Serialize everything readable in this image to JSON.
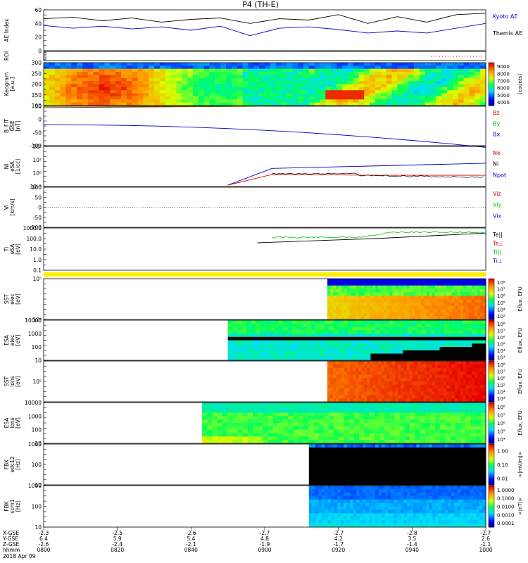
{
  "title": "P4 (TH-E)",
  "date_label": "2018 Apr 09",
  "colors": {
    "black": "#000000",
    "blue": "#0000d0",
    "red": "#d00000",
    "green": "#00c000",
    "yellow": "#ffee00"
  },
  "chart_data": [
    {
      "id": "ae",
      "type": "line",
      "ylabel": "AE Index",
      "ylim": [
        0,
        60
      ],
      "yticks": [
        "0",
        "20",
        "40",
        "60"
      ],
      "legend": [
        {
          "label": "Kyoto AE",
          "color": "#0000d0"
        },
        {
          "label": "Themis AE",
          "color": "#000000"
        }
      ],
      "series": [
        {
          "color": "#000000",
          "x": [
            0,
            4,
            8,
            12,
            16,
            20,
            24,
            28,
            32,
            36,
            40,
            44,
            48,
            52,
            56,
            60
          ],
          "values": [
            47,
            49,
            44,
            48,
            42,
            46,
            48,
            40,
            47,
            45,
            53,
            40,
            50,
            42,
            53,
            55
          ]
        },
        {
          "color": "#0000d0",
          "x": [
            0,
            4,
            8,
            12,
            16,
            20,
            24,
            28,
            32,
            36,
            40,
            44,
            48,
            52,
            56,
            60
          ],
          "values": [
            37,
            33,
            36,
            32,
            35,
            30,
            36,
            22,
            33,
            35,
            31,
            26,
            29,
            26,
            33,
            40
          ]
        }
      ]
    },
    {
      "id": "roi",
      "type": "line",
      "ylabel": "ROI",
      "note": "dotted red segment near end"
    },
    {
      "id": "keogram",
      "type": "heatmap",
      "ylabel": [
        "Keogram",
        "[a.u.]"
      ],
      "ylim": [
        100,
        300
      ],
      "yticks": [
        "100",
        "150",
        "200",
        "250",
        "300"
      ],
      "colorbar": {
        "label": "[counts]",
        "ticks": [
          "4000",
          "5000",
          "6000",
          "7000",
          "8000",
          "9000"
        ]
      }
    },
    {
      "id": "bfield",
      "type": "line",
      "ylabel": [
        "B_FIT",
        "GSE",
        "[nT]"
      ],
      "ylim": [
        -100,
        50
      ],
      "yticks": [
        "-100",
        "-50",
        "0",
        "50"
      ],
      "legend": [
        {
          "label": "Bz",
          "color": "#d00000"
        },
        {
          "label": "By",
          "color": "#00c000"
        },
        {
          "label": "Bx",
          "color": "#0000d0"
        }
      ]
    },
    {
      "id": "density",
      "type": "line",
      "ylabel": [
        "Ni",
        "eSA",
        "[1/cc]"
      ],
      "yticks": [
        "10⁻²",
        "10⁰",
        "10²",
        "10⁴"
      ],
      "legend": [
        {
          "label": "Ne",
          "color": "#d00000"
        },
        {
          "label": "Ni",
          "color": "#000000"
        },
        {
          "label": "Npot",
          "color": "#0000d0"
        }
      ]
    },
    {
      "id": "velocity",
      "type": "line",
      "ylabel": [
        "Vi",
        "[km/s]"
      ],
      "ylim": [
        -100,
        100
      ],
      "yticks": [
        "-100",
        "-50",
        "0",
        "50",
        "100"
      ],
      "legend": [
        {
          "label": "Viz",
          "color": "#d00000"
        },
        {
          "label": "Viy",
          "color": "#00c000"
        },
        {
          "label": "Vix",
          "color": "#0000d0"
        }
      ]
    },
    {
      "id": "temperature",
      "type": "line",
      "ylabel": [
        "Ti",
        "eSA",
        "[eV]"
      ],
      "yticks": [
        "0.1",
        "1.0",
        "10.0",
        "100.0",
        "1000.0"
      ],
      "legend": [
        {
          "label": "Te||",
          "color": "#000000"
        },
        {
          "label": "Te⊥",
          "color": "#d00000"
        },
        {
          "label": "Ti||",
          "color": "#00c000"
        },
        {
          "label": "Ti⊥",
          "color": "#0000d0"
        }
      ]
    },
    {
      "id": "sst_e",
      "type": "heatmap",
      "ylabel": [
        "SST",
        "elec",
        "[eV]"
      ],
      "yticks": [
        "10⁴",
        "10⁵"
      ],
      "colorbar": {
        "title": "Eflux, EFU",
        "ticks": [
          "10³",
          "10⁴",
          "10⁵",
          "10⁶",
          "10⁷",
          "10⁸"
        ]
      }
    },
    {
      "id": "esa_e",
      "type": "heatmap",
      "ylabel": [
        "ESA",
        "elec",
        "[eV]"
      ],
      "yticks": [
        "10",
        "100",
        "1000",
        "10000"
      ],
      "colorbar": {
        "title": "Eflux, EFU",
        "ticks": [
          "10³",
          "10⁴",
          "10⁵",
          "10⁶",
          "10⁷",
          "10⁸"
        ]
      }
    },
    {
      "id": "sst_i",
      "type": "heatmap",
      "ylabel": [
        "SST",
        "ions",
        "[eV]"
      ],
      "yticks": [
        "10⁵"
      ],
      "colorbar": {
        "title": "Eflux, EFU",
        "ticks": [
          "10³",
          "10⁴",
          "10⁵",
          "10⁶",
          "10⁷",
          "10⁸"
        ]
      }
    },
    {
      "id": "esa_i",
      "type": "heatmap",
      "ylabel": [
        "ESA",
        "ions",
        "[eV]"
      ],
      "yticks": [
        "10",
        "100",
        "1000",
        "10000"
      ],
      "colorbar": {
        "title": "Eflux, EFU",
        "ticks": [
          "10⁴",
          "10⁵",
          "10⁶",
          "10⁷",
          "10⁸"
        ]
      }
    },
    {
      "id": "fbk_e",
      "type": "heatmap",
      "ylabel": [
        "FBK",
        "edc12",
        "[Hz]"
      ],
      "yticks": [
        "10",
        "100",
        "1000"
      ],
      "colorbar": {
        "title": "<|mV/m|>",
        "ticks": [
          "0.01",
          "0.10",
          "1.00"
        ]
      }
    },
    {
      "id": "fbk_b",
      "type": "heatmap",
      "ylabel": [
        "FBK",
        "scm1",
        "[Hz]"
      ],
      "yticks": [
        "10",
        "100",
        "1000"
      ],
      "colorbar": {
        "title": "<|nT|>",
        "ticks": [
          "0.0001",
          "0.0010",
          "0.0100",
          "0.1000",
          "1.0000"
        ]
      }
    }
  ],
  "xaxis": {
    "row_labels": [
      "X-GSE",
      "Y-GSE",
      "Z-GSE",
      "hhmm"
    ],
    "columns": [
      {
        "x": "-2.3",
        "y": "6.4",
        "z": "-2.6",
        "t": "0800"
      },
      {
        "x": "-2.5",
        "y": "5.9",
        "z": "-2.4",
        "t": "0820"
      },
      {
        "x": "-2.6",
        "y": "5.4",
        "z": "-2.1",
        "t": "0840"
      },
      {
        "x": "-2.7",
        "y": "4.8",
        "z": "-1.9",
        "t": "0900"
      },
      {
        "x": "-2.7",
        "y": "4.2",
        "z": "-1.7",
        "t": "0920"
      },
      {
        "x": "-2.8",
        "y": "3.5",
        "z": "-1.4",
        "t": "0940"
      },
      {
        "x": "-2.7",
        "y": "2.6",
        "z": "-1.1",
        "t": "1000"
      }
    ]
  }
}
